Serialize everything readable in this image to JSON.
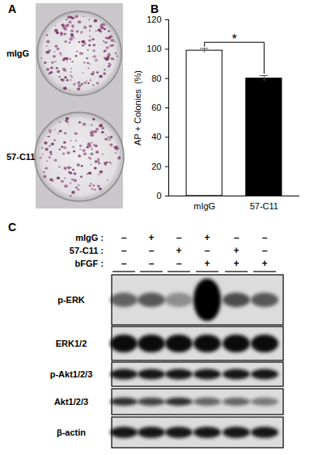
{
  "panel_labels": [
    "A",
    "B",
    "C"
  ],
  "panel_a": {
    "rows": [
      "mIgG",
      "57-C11"
    ]
  },
  "chart_data": {
    "type": "bar",
    "y_label": "AP + Colonies  (%)",
    "categories": [
      "mIgG",
      "57-C11"
    ],
    "values": [
      99,
      80
    ],
    "errors": [
      1.5,
      2
    ],
    "colors": [
      "#ffffff",
      "#000000"
    ],
    "ylim": [
      0,
      120
    ],
    "yticks": [
      0,
      20,
      40,
      60,
      80,
      100,
      120
    ],
    "annotations": [
      "*"
    ]
  },
  "blot": {
    "treatments": [
      {
        "name": "mIgG :",
        "signs": [
          "–",
          "+",
          "–",
          "+",
          "–",
          "–"
        ]
      },
      {
        "name": "57-C11 :",
        "signs": [
          "–",
          "–",
          "+",
          "–",
          "+",
          "–"
        ]
      },
      {
        "name": "bFGF :",
        "signs": [
          "–",
          "–",
          "–",
          "+",
          "+",
          "+"
        ]
      }
    ],
    "bands": [
      "p-ERK",
      "ERK1/2",
      "p-Akt1/2/3",
      "Akt1/2/3",
      "β-actin"
    ]
  }
}
